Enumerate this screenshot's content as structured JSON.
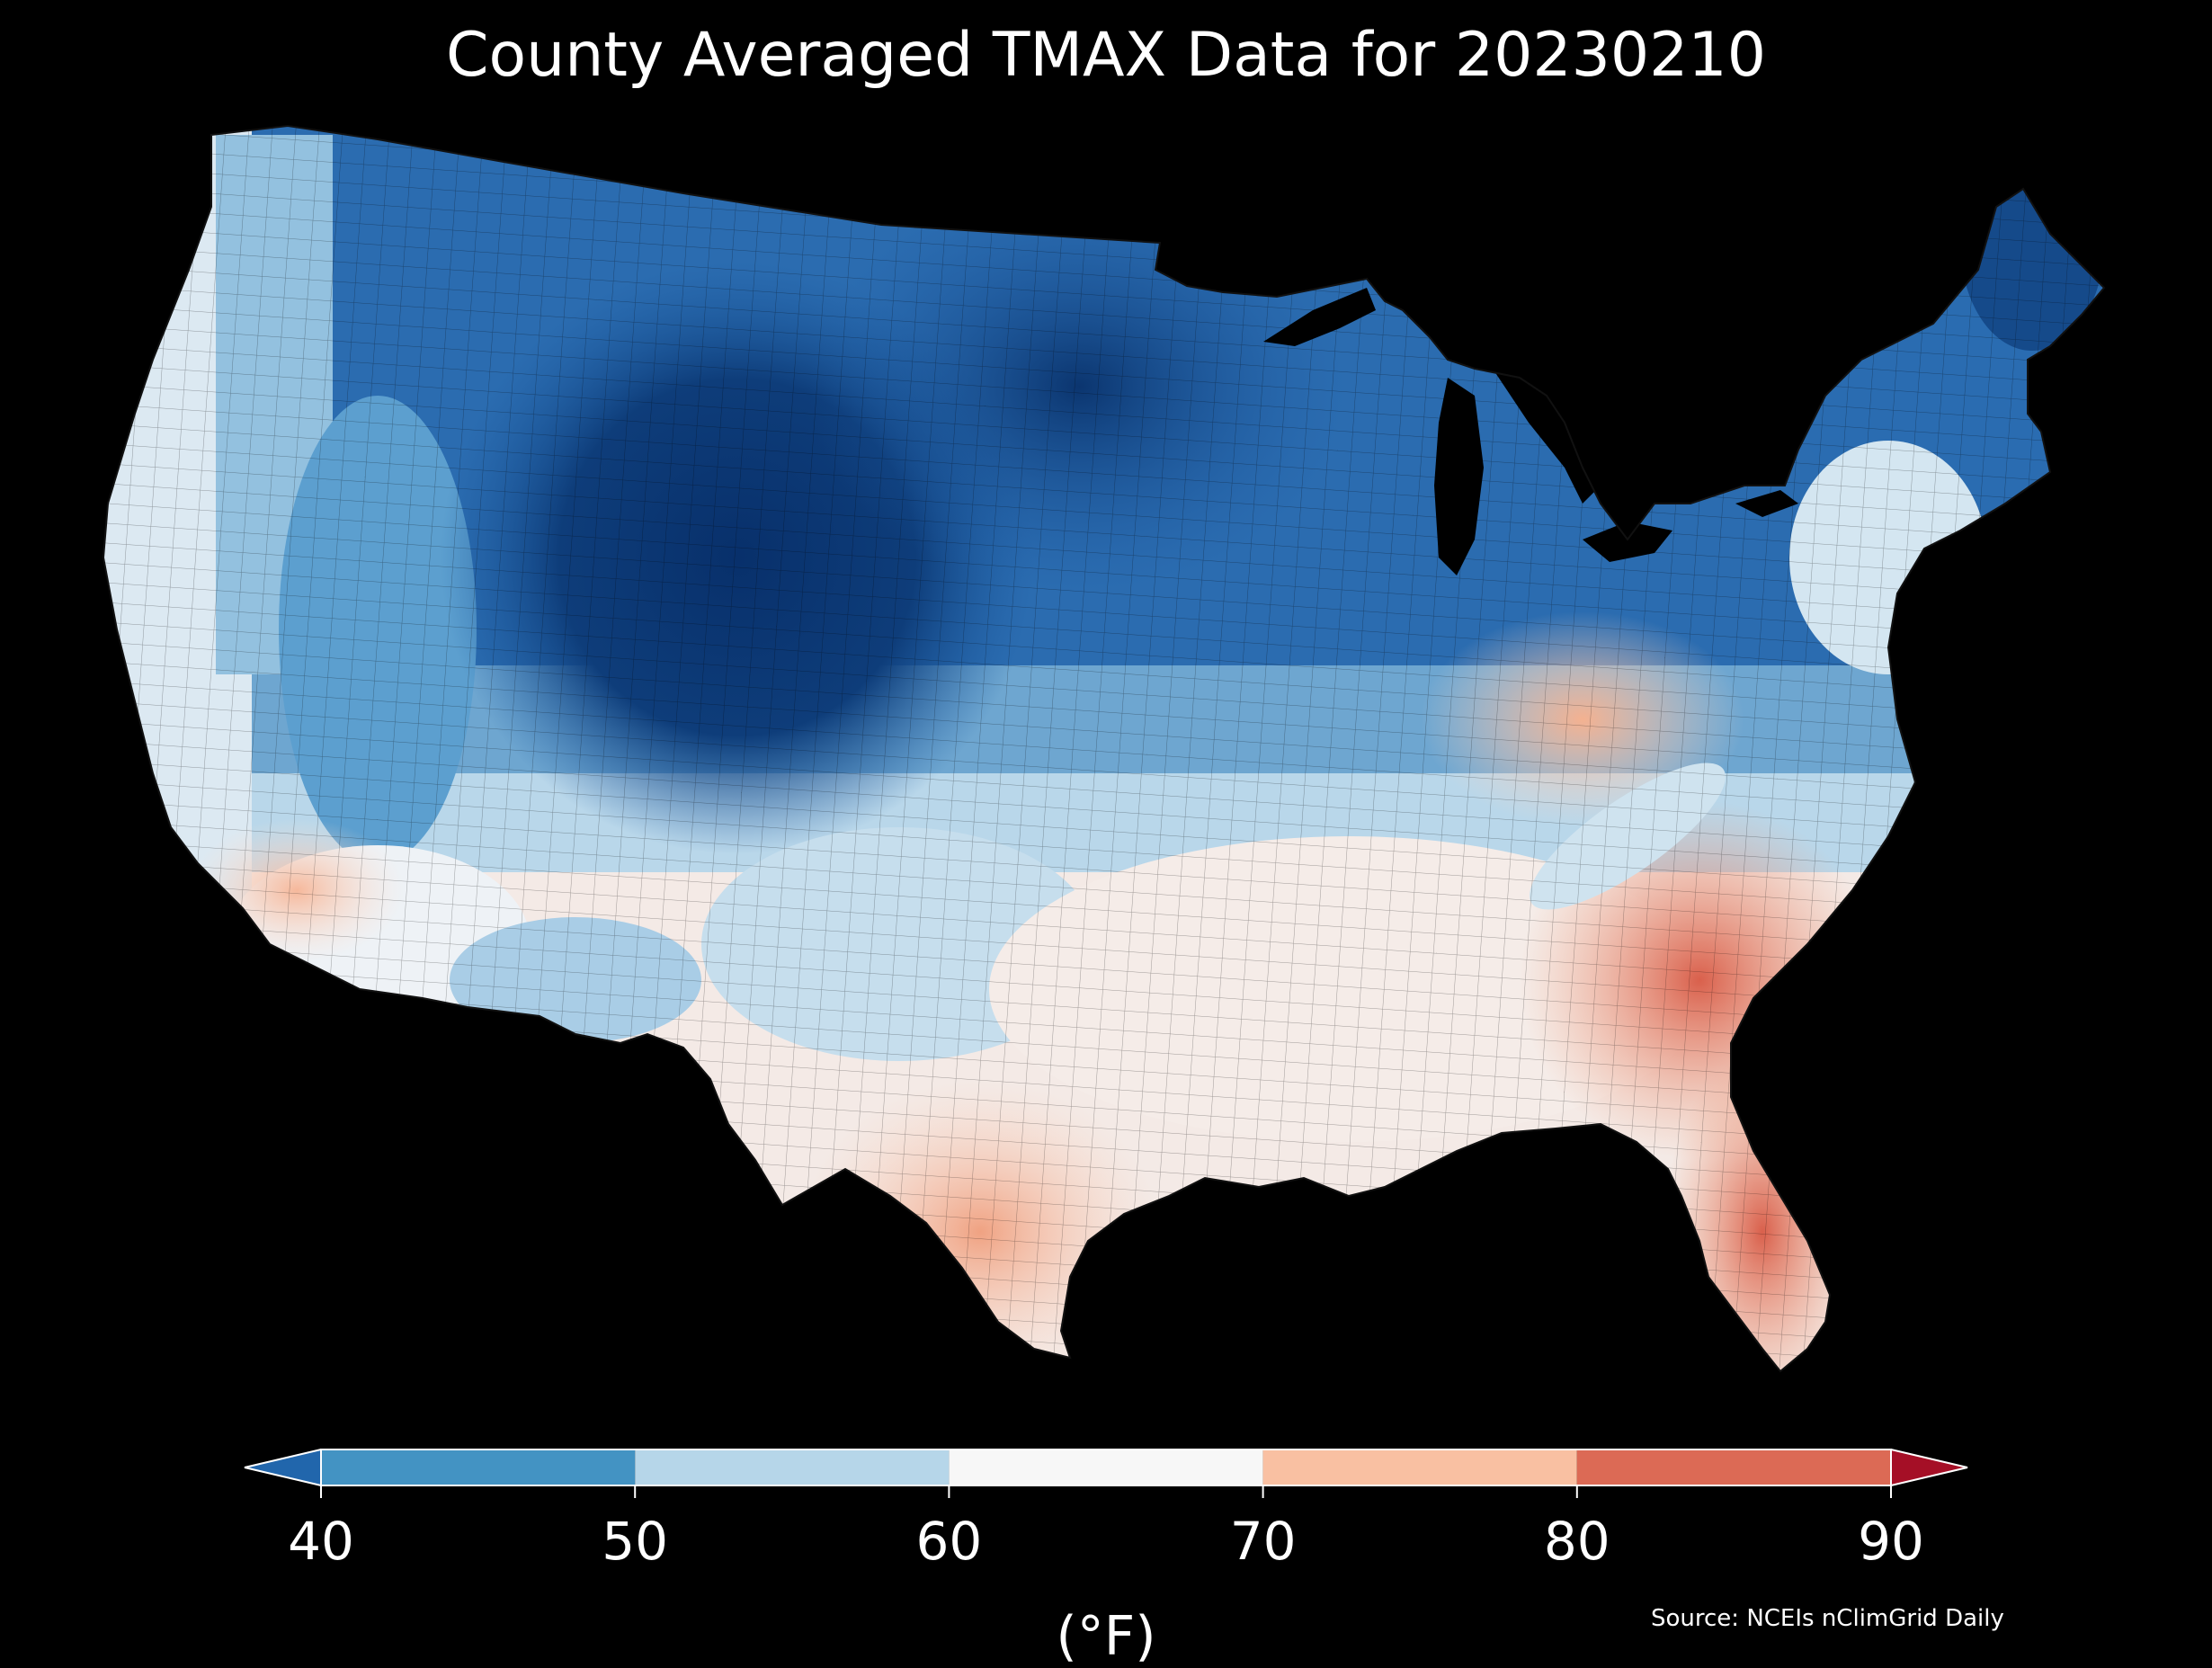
{
  "title": "County Averaged TMAX Data for 20230210",
  "source": "Source: NCEIs nClimGrid Daily",
  "colorbar": {
    "unit_label": "(°F)",
    "ticks": [
      "40",
      "50",
      "60",
      "70",
      "80",
      "90"
    ],
    "bins": [
      {
        "range": "<40",
        "color": "#2166ac"
      },
      {
        "range": "40-50",
        "color": "#4393c3"
      },
      {
        "range": "50-60",
        "color": "#b6d6e9"
      },
      {
        "range": "60-70",
        "color": "#f7f7f7"
      },
      {
        "range": "70-80",
        "color": "#f9c0a2"
      },
      {
        "range": "80-90",
        "color": "#dc6a55"
      },
      {
        "range": ">90",
        "color": "#a50f26"
      }
    ]
  },
  "map": {
    "region": "Contiguous United States",
    "variable": "TMAX",
    "date": "20230210",
    "background": "#000000",
    "regional_values": [
      {
        "region": "Northern Rockies / High Plains",
        "tmax": 30
      },
      {
        "region": "Upper Midwest",
        "tmax": 35
      },
      {
        "region": "Pacific Northwest coast",
        "tmax": 55
      },
      {
        "region": "Great Basin",
        "tmax": 45
      },
      {
        "region": "California coast",
        "tmax": 63
      },
      {
        "region": "Southern California",
        "tmax": 72
      },
      {
        "region": "Desert Southwest",
        "tmax": 62
      },
      {
        "region": "Southern Plains",
        "tmax": 52
      },
      {
        "region": "Lower Mississippi Valley",
        "tmax": 66
      },
      {
        "region": "South Texas",
        "tmax": 76
      },
      {
        "region": "Ohio Valley / Kentucky",
        "tmax": 72
      },
      {
        "region": "Southeast / Georgia",
        "tmax": 76
      },
      {
        "region": "Florida",
        "tmax": 82
      },
      {
        "region": "Mid-Atlantic",
        "tmax": 60
      },
      {
        "region": "New England",
        "tmax": 45
      },
      {
        "region": "Northern Maine",
        "tmax": 38
      }
    ]
  }
}
